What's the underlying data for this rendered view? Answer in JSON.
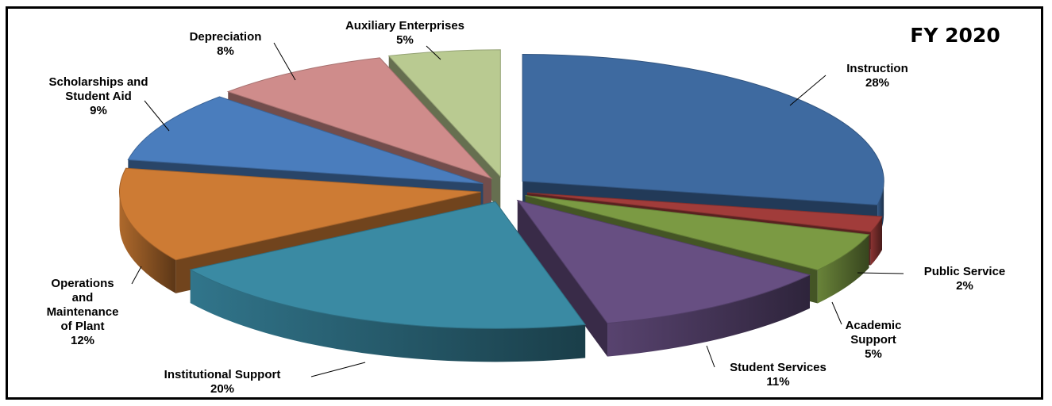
{
  "chart_data": {
    "type": "pie",
    "title": "FY 2020",
    "style": "3d-exploded",
    "slices": [
      {
        "label": [
          "Instruction"
        ],
        "percent": "28%",
        "value": 28,
        "color": "#3e6aa0"
      },
      {
        "label": [
          "Public Service"
        ],
        "percent": "2%",
        "value": 2,
        "color": "#a13c3a"
      },
      {
        "label": [
          "Academic",
          "Support"
        ],
        "percent": "5%",
        "value": 5,
        "color": "#7b9a43"
      },
      {
        "label": [
          "Student Services"
        ],
        "percent": "11%",
        "value": 11,
        "color": "#674f82"
      },
      {
        "label": [
          "Institutional Support"
        ],
        "percent": "20%",
        "value": 20,
        "color": "#3a8aa3"
      },
      {
        "label": [
          "Operations",
          "and",
          "Maintenance",
          "of Plant"
        ],
        "percent": "12%",
        "value": 12,
        "color": "#cd7b34"
      },
      {
        "label": [
          "Scholarships and",
          "Student Aid"
        ],
        "percent": "9%",
        "value": 9,
        "color": "#4a7dbd"
      },
      {
        "label": [
          "Depreciation"
        ],
        "percent": "8%",
        "value": 8,
        "color": "#cf8c8b"
      },
      {
        "label": [
          "Auxiliary Enterprises"
        ],
        "percent": "5%",
        "value": 5,
        "color": "#b9ca91"
      }
    ]
  }
}
